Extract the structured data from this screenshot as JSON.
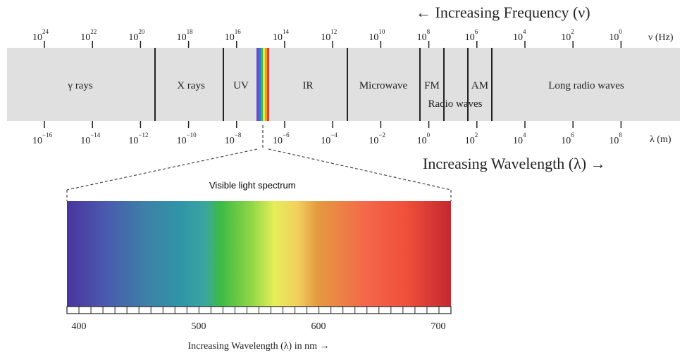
{
  "frequency_title": "← Increasing Frequency (ν)",
  "frequency_unit": "ν (Hz)",
  "wavelength_title": "Increasing Wavelength (λ) →",
  "wavelength_unit": "λ (m)",
  "frequency_ticks": [
    {
      "base": "10",
      "exp": "24"
    },
    {
      "base": "10",
      "exp": "22"
    },
    {
      "base": "10",
      "exp": "20"
    },
    {
      "base": "10",
      "exp": "18"
    },
    {
      "base": "10",
      "exp": "16"
    },
    {
      "base": "10",
      "exp": "14"
    },
    {
      "base": "10",
      "exp": "12"
    },
    {
      "base": "10",
      "exp": "10"
    },
    {
      "base": "10",
      "exp": "8"
    },
    {
      "base": "10",
      "exp": "6"
    },
    {
      "base": "10",
      "exp": "4"
    },
    {
      "base": "10",
      "exp": "2"
    },
    {
      "base": "10",
      "exp": "0"
    }
  ],
  "wavelength_ticks": [
    {
      "base": "10",
      "exp": "−16"
    },
    {
      "base": "10",
      "exp": "−14"
    },
    {
      "base": "10",
      "exp": "−12"
    },
    {
      "base": "10",
      "exp": "−10"
    },
    {
      "base": "10",
      "exp": "−8"
    },
    {
      "base": "10",
      "exp": "−6"
    },
    {
      "base": "10",
      "exp": "−4"
    },
    {
      "base": "10",
      "exp": "−2"
    },
    {
      "base": "10",
      "exp": "0"
    },
    {
      "base": "10",
      "exp": "2"
    },
    {
      "base": "10",
      "exp": "4"
    },
    {
      "base": "10",
      "exp": "6"
    },
    {
      "base": "10",
      "exp": "8"
    }
  ],
  "regions": {
    "gamma": "γ rays",
    "xray": "X rays",
    "uv": "UV",
    "ir": "IR",
    "microwave": "Microwave",
    "fm": "FM",
    "am": "AM",
    "radio": "Radio waves",
    "long_radio": "Long radio waves"
  },
  "visible": {
    "title": "Visible light spectrum",
    "ticks": [
      "400",
      "500",
      "600",
      "700"
    ],
    "axis_label": "Increasing Wavelength (λ) in nm →"
  },
  "colors": {
    "band_fill": "#e0e0e0",
    "divider": "#222222"
  }
}
